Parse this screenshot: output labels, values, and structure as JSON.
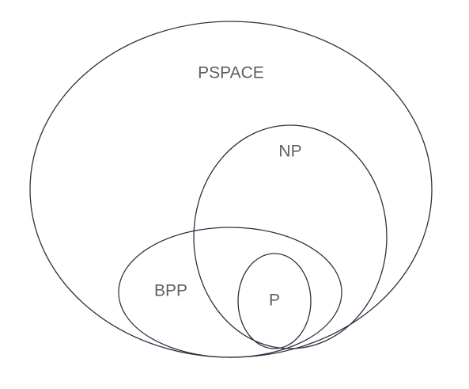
{
  "diagram": {
    "stroke_color": "#2e3140",
    "label_color": "#5c6066",
    "sets": {
      "pspace": {
        "label": "PSPACE"
      },
      "np": {
        "label": "NP"
      },
      "bpp": {
        "label": "BPP"
      },
      "p": {
        "label": "P"
      }
    }
  }
}
